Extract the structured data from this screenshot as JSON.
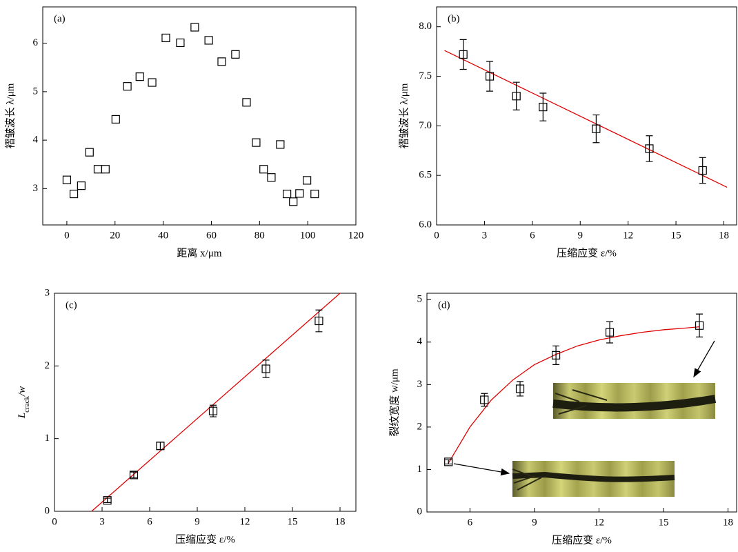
{
  "chart_data": [
    {
      "type": "scatter",
      "panel_label": "(a)",
      "x_label": "距离 x/μm",
      "y_label": "褶皱波长 λ/μm",
      "xlim": [
        -10,
        120
      ],
      "ylim": [
        2.25,
        6.75
      ],
      "xticks": [
        0,
        20,
        40,
        60,
        80,
        100,
        120
      ],
      "yticks": [
        3,
        4,
        5,
        6
      ],
      "points": {
        "x": [
          0,
          2.9,
          6,
          9.4,
          12.9,
          16,
          20.3,
          25.1,
          30.3,
          35.4,
          41.1,
          47.1,
          53.1,
          58.9,
          64.3,
          70,
          74.6,
          78.6,
          81.7,
          84.9,
          88.6,
          91.4,
          94,
          96.6,
          99.7,
          102.9
        ],
        "y": [
          3.18,
          2.89,
          3.06,
          3.75,
          3.4,
          3.4,
          4.43,
          5.11,
          5.31,
          5.19,
          6.11,
          6.01,
          6.33,
          6.06,
          5.62,
          5.77,
          4.78,
          3.95,
          3.4,
          3.23,
          3.91,
          2.89,
          2.73,
          2.9,
          3.17,
          2.89
        ]
      }
    },
    {
      "type": "scatter",
      "panel_label": "(b)",
      "x_label": "压缩应变 ε/%",
      "y_label": "褶皱波长 λ/μm",
      "xlim": [
        0,
        18.8
      ],
      "ylim": [
        6.0,
        8.2
      ],
      "xticks": [
        0,
        3,
        6,
        9,
        12,
        15,
        18
      ],
      "yticks": [
        {
          "value": 6,
          "label": "6.0"
        },
        6.5,
        {
          "value": 7,
          "label": "7.0"
        },
        7.5,
        {
          "value": 8,
          "label": "8.0"
        }
      ],
      "points": {
        "x": [
          1.67,
          3.33,
          5,
          6.67,
          10,
          13.33,
          16.67
        ],
        "y": [
          7.72,
          7.5,
          7.3,
          7.19,
          6.97,
          6.77,
          6.55
        ],
        "errors": [
          0.15,
          0.15,
          0.14,
          0.14,
          0.14,
          0.13,
          0.13
        ]
      },
      "fit": {
        "color": "#e00000",
        "x": [
          0.5,
          18.2
        ],
        "y": [
          7.76,
          6.38
        ]
      }
    },
    {
      "type": "scatter",
      "panel_label": "(c)",
      "x_label": "压缩应变 ε/%",
      "y_label": [
        "L",
        "crack",
        "/w"
      ],
      "xlim": [
        0,
        19
      ],
      "ylim": [
        0,
        3
      ],
      "xticks": [
        0,
        3,
        6,
        9,
        12,
        15,
        18
      ],
      "yticks": [
        0,
        1,
        2,
        3
      ],
      "points": {
        "x": [
          3.33,
          5,
          6.67,
          10,
          13.33,
          16.67
        ],
        "y": [
          0.15,
          0.5,
          0.9,
          1.38,
          1.96,
          2.62
        ],
        "errors": [
          0.03,
          0.04,
          0.05,
          0.08,
          0.12,
          0.15
        ]
      },
      "fit": {
        "color": "#e00000",
        "x": [
          2.34,
          18
        ],
        "y": [
          0,
          3
        ]
      }
    },
    {
      "type": "scatter",
      "panel_label": "(d)",
      "x_label": "压缩应变 ε/%",
      "y_label": "裂纹宽度 w/μm",
      "xlim": [
        4,
        18.4
      ],
      "ylim": [
        0,
        5.15
      ],
      "xticks": [
        6,
        9,
        12,
        15,
        18
      ],
      "yticks": [
        0,
        1,
        2,
        3,
        4,
        5
      ],
      "points": {
        "x": [
          5,
          6.67,
          8.33,
          10,
          12.5,
          16.67
        ],
        "y": [
          1.18,
          2.64,
          2.9,
          3.69,
          4.23,
          4.39
        ],
        "errors": [
          0.05,
          0.15,
          0.17,
          0.22,
          0.25,
          0.27
        ]
      },
      "fit": {
        "color": "#e00000",
        "x": [
          5,
          6,
          7,
          8,
          9,
          10,
          11,
          12,
          13,
          14,
          15,
          16,
          16.67
        ],
        "y": [
          1.15,
          2.0,
          2.64,
          3.11,
          3.47,
          3.71,
          3.91,
          4.05,
          4.15,
          4.23,
          4.29,
          4.33,
          4.36
        ]
      }
    }
  ]
}
